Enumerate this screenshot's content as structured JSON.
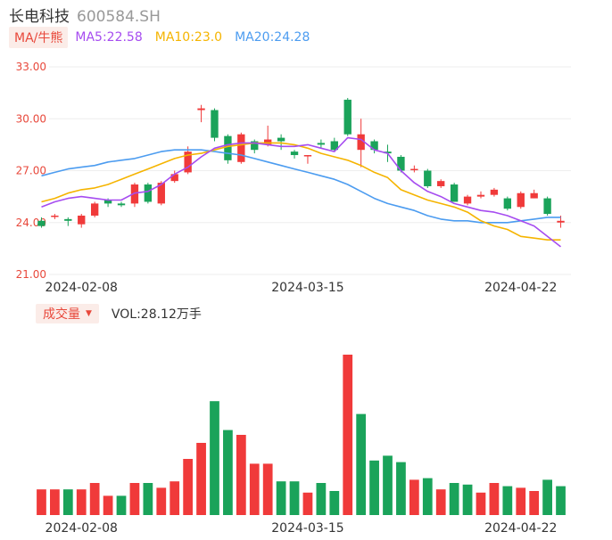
{
  "header": {
    "name": "长电科技",
    "code": "600584.SH"
  },
  "ma_legend": {
    "tag": "MA/牛熊",
    "ma5": "MA5:22.58",
    "ma10": "MA10:23.0",
    "ma20": "MA20:24.28"
  },
  "volume_legend": {
    "tag": "成交量",
    "text": "VOL:28.12万手"
  },
  "colors": {
    "up": "#f03a3a",
    "down": "#1aa35a",
    "ma5": "#a64cf0",
    "ma10": "#f5b400",
    "ma20": "#4c9cf0",
    "axis_text": "#e8483b"
  },
  "chart_data": [
    {
      "type": "candlestick",
      "y_ticks": [
        "33.00",
        "30.00",
        "27.00",
        "24.00",
        "21.00"
      ],
      "ylim": [
        21,
        33
      ],
      "x_ticks": [
        {
          "label": "2024-02-08",
          "index": 3
        },
        {
          "label": "2024-03-15",
          "index": 20
        },
        {
          "label": "2024-04-22",
          "index": 36
        }
      ],
      "ohlc": [
        [
          24.1,
          23.8,
          24.3,
          23.7
        ],
        [
          24.4,
          24.4,
          24.5,
          24.2
        ],
        [
          24.2,
          24.1,
          24.3,
          23.8
        ],
        [
          23.9,
          24.4,
          24.5,
          23.7
        ],
        [
          24.4,
          25.1,
          25.2,
          24.3
        ],
        [
          25.3,
          25.1,
          25.4,
          24.9
        ],
        [
          25.1,
          25.0,
          25.2,
          24.9
        ],
        [
          25.1,
          26.2,
          26.3,
          24.9
        ],
        [
          26.2,
          25.2,
          26.3,
          25.1
        ],
        [
          25.1,
          26.3,
          26.4,
          25.0
        ],
        [
          26.4,
          26.8,
          27.0,
          26.3
        ],
        [
          26.9,
          28.1,
          28.4,
          26.8
        ],
        [
          30.5,
          30.6,
          30.8,
          29.8
        ],
        [
          30.5,
          28.9,
          30.6,
          28.7
        ],
        [
          29.0,
          27.6,
          29.1,
          27.4
        ],
        [
          27.5,
          29.1,
          29.2,
          27.4
        ],
        [
          28.7,
          28.2,
          28.8,
          28.0
        ],
        [
          28.5,
          28.8,
          29.6,
          28.4
        ],
        [
          28.9,
          28.7,
          29.1,
          28.2
        ],
        [
          28.1,
          27.9,
          28.2,
          27.7
        ],
        [
          27.9,
          27.9,
          27.9,
          27.4
        ],
        [
          28.6,
          28.5,
          28.8,
          28.3
        ],
        [
          28.7,
          28.2,
          28.9,
          28.1
        ],
        [
          31.1,
          29.1,
          31.2,
          29.0
        ],
        [
          28.2,
          29.1,
          30.0,
          27.2
        ],
        [
          28.7,
          28.2,
          28.8,
          28.0
        ],
        [
          28.1,
          28.0,
          28.5,
          27.5
        ],
        [
          27.8,
          27.0,
          27.9,
          26.9
        ],
        [
          27.1,
          27.1,
          27.3,
          26.9
        ],
        [
          27.0,
          26.1,
          27.1,
          26.0
        ],
        [
          26.1,
          26.4,
          26.5,
          26.0
        ],
        [
          26.2,
          25.2,
          26.3,
          25.2
        ],
        [
          25.1,
          25.5,
          25.6,
          25.0
        ],
        [
          25.5,
          25.6,
          25.8,
          25.4
        ],
        [
          25.6,
          25.9,
          26.0,
          25.5
        ],
        [
          25.4,
          24.8,
          25.5,
          24.7
        ],
        [
          24.9,
          25.7,
          25.8,
          24.8
        ],
        [
          25.4,
          25.7,
          25.9,
          25.4
        ],
        [
          25.4,
          24.5,
          25.5,
          24.4
        ],
        [
          24.0,
          24.1,
          24.4,
          23.7
        ]
      ],
      "ma5": [
        24.9,
        25.2,
        25.4,
        25.5,
        25.4,
        25.3,
        25.3,
        25.7,
        25.8,
        26.2,
        26.8,
        27.2,
        27.8,
        28.3,
        28.5,
        28.6,
        28.6,
        28.5,
        28.4,
        28.4,
        28.5,
        28.3,
        28.1,
        28.9,
        28.8,
        28.2,
        28.0,
        27.0,
        26.3,
        25.8,
        25.5,
        25.1,
        24.9,
        24.7,
        24.6,
        24.4,
        24.1,
        23.8,
        23.2,
        22.6
      ],
      "ma10": [
        25.2,
        25.4,
        25.7,
        25.9,
        26.0,
        26.2,
        26.5,
        26.8,
        27.1,
        27.4,
        27.7,
        27.9,
        28.0,
        28.2,
        28.4,
        28.5,
        28.6,
        28.6,
        28.6,
        28.5,
        28.3,
        28.0,
        27.8,
        27.6,
        27.3,
        26.9,
        26.6,
        25.9,
        25.6,
        25.3,
        25.1,
        24.9,
        24.6,
        24.1,
        23.8,
        23.6,
        23.2,
        23.1,
        23.0,
        23.0
      ],
      "ma20": [
        26.7,
        26.9,
        27.1,
        27.2,
        27.3,
        27.5,
        27.6,
        27.7,
        27.9,
        28.1,
        28.2,
        28.2,
        28.2,
        28.1,
        28.0,
        27.9,
        27.7,
        27.5,
        27.3,
        27.1,
        26.9,
        26.7,
        26.5,
        26.2,
        25.8,
        25.4,
        25.1,
        24.9,
        24.7,
        24.4,
        24.2,
        24.1,
        24.1,
        24.0,
        24.0,
        24.0,
        24.1,
        24.2,
        24.3,
        24.3
      ]
    },
    {
      "type": "bar",
      "x_ticks": [
        {
          "label": "2024-02-08",
          "index": 3
        },
        {
          "label": "2024-03-15",
          "index": 20
        },
        {
          "label": "2024-04-22",
          "index": 36
        }
      ],
      "ylim": [
        0,
        100
      ],
      "values": [
        16,
        16,
        16,
        16,
        20,
        12,
        12,
        20,
        20,
        17,
        21,
        35,
        45,
        71,
        53,
        50,
        32,
        32,
        21,
        21,
        14,
        20,
        15,
        100,
        63,
        34,
        37,
        33,
        22,
        23,
        16,
        20,
        19,
        14,
        20,
        18,
        17,
        15,
        22,
        18
      ],
      "up": [
        true,
        true,
        false,
        true,
        true,
        true,
        false,
        true,
        false,
        true,
        true,
        true,
        true,
        false,
        false,
        true,
        true,
        true,
        false,
        false,
        true,
        false,
        false,
        true,
        false,
        false,
        false,
        false,
        true,
        false,
        true,
        false,
        false,
        true,
        true,
        false,
        true,
        true,
        false,
        false
      ]
    }
  ]
}
